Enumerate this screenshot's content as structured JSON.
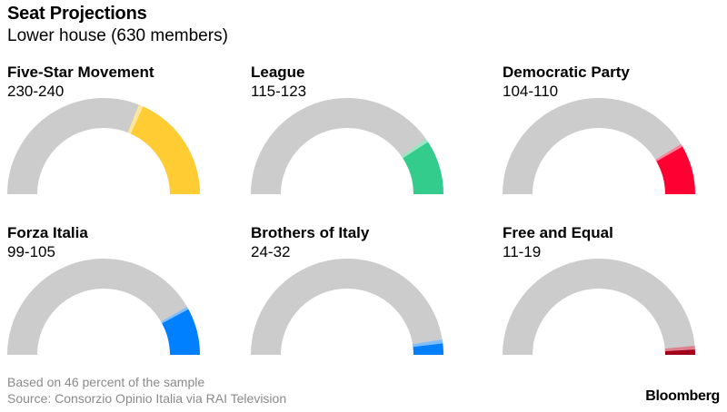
{
  "header": {
    "title": "Seat Projections",
    "subtitle": "Lower house (630 members)"
  },
  "chart_data": {
    "type": "gauge",
    "title": "Seat Projections",
    "subtitle": "Lower house (630 members)",
    "total": 630,
    "parties": [
      {
        "name": "Five-Star Movement",
        "range_label": "230-240",
        "low": 230,
        "high": 240,
        "color": "#ffcc33",
        "band_color": "#ffe599"
      },
      {
        "name": "League",
        "range_label": "115-123",
        "low": 115,
        "high": 123,
        "color": "#33cc8c",
        "band_color": "#99e6c5"
      },
      {
        "name": "Democratic Party",
        "range_label": "104-110",
        "low": 104,
        "high": 110,
        "color": "#ff0033",
        "band_color": "#ff8099"
      },
      {
        "name": "Forza Italia",
        "range_label": "99-105",
        "low": 99,
        "high": 105,
        "color": "#0080ff",
        "band_color": "#80bfff"
      },
      {
        "name": "Brothers of Italy",
        "range_label": "24-32",
        "low": 24,
        "high": 32,
        "color": "#0080ff",
        "band_color": "#80bfff"
      },
      {
        "name": "Free and Equal",
        "range_label": "11-19",
        "low": 11,
        "high": 19,
        "color": "#a3001c",
        "band_color": "#e0808f"
      }
    ],
    "background_color": "#cccccc"
  },
  "footer": {
    "note": "Based on 46 percent of the sample",
    "source": "Source: Consorzio Opinio Italia via RAI Television",
    "brand": "Bloomberg"
  }
}
